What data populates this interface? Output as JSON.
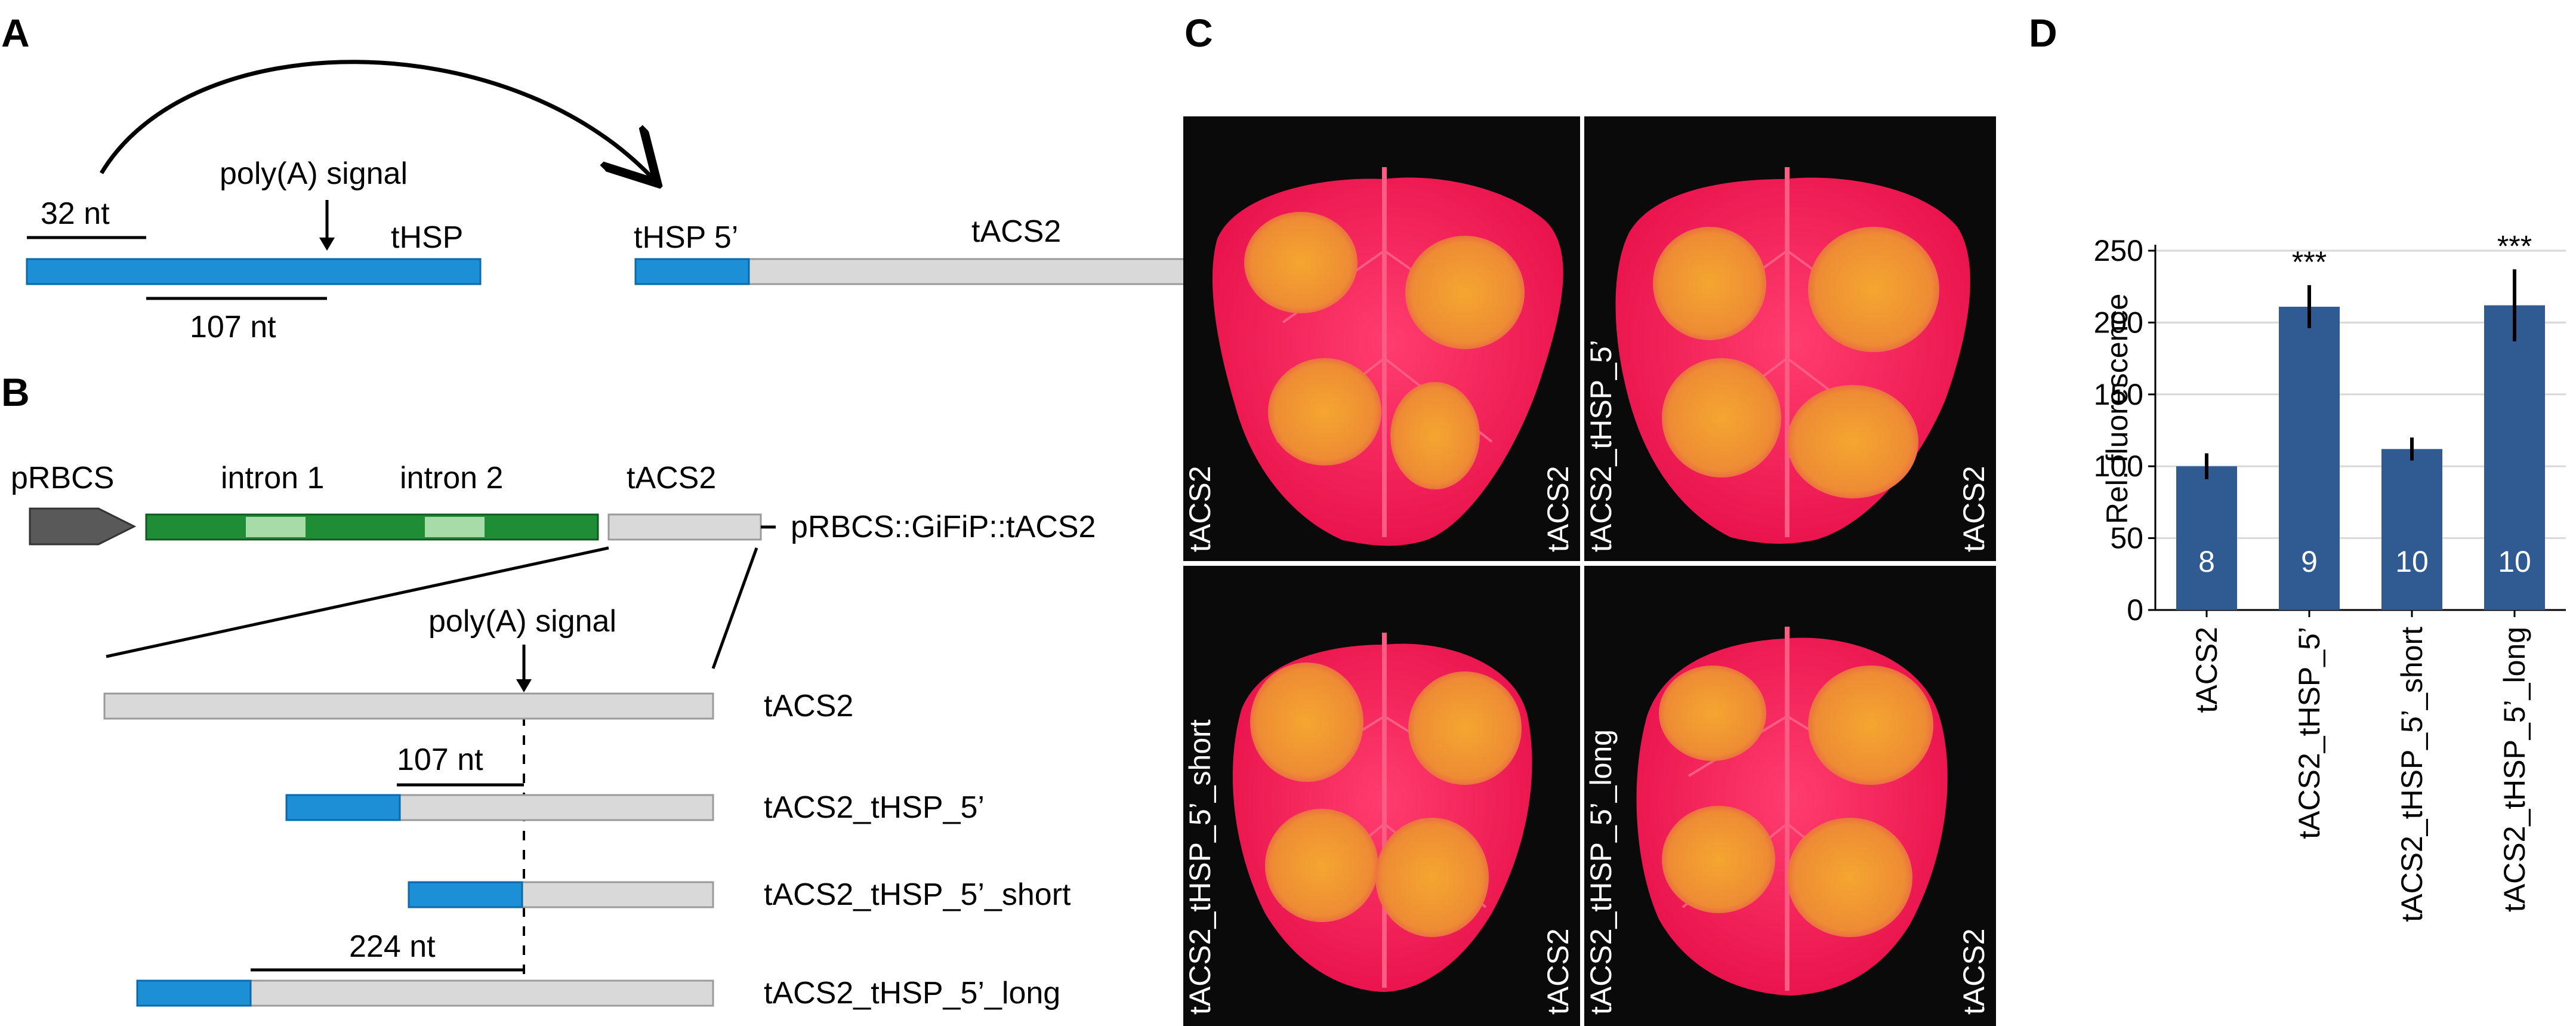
{
  "panels": {
    "a": {
      "letter": "A",
      "len32": "32 nt",
      "polya": "poly(A) signal",
      "thsp": "tHSP",
      "len107": "107 nt",
      "thsp5": "tHSP 5’",
      "tacs2": "tACS2"
    },
    "b": {
      "letter": "B",
      "prbcs": "pRBCS",
      "intron1": "intron 1",
      "intron2": "intron 2",
      "tacs2": "tACS2",
      "construct": "pRBCS::GiFiP::tACS2",
      "polya": "poly(A) signal",
      "len107": "107 nt",
      "len224": "224 nt",
      "rows": [
        "tACS2",
        "tACS2_tHSP_5’",
        "tACS2_tHSP_5’_short",
        "tACS2_tHSP_5’_long"
      ]
    },
    "c": {
      "letter": "C",
      "leaves": [
        {
          "left": "tACS2",
          "right": "tACS2"
        },
        {
          "left": "tACS2_tHSP_5’",
          "right": "tACS2"
        },
        {
          "left": "tACS2_tHSP_5’_short",
          "right": "tACS2"
        },
        {
          "left": "tACS2_tHSP_5’_long",
          "right": "tACS2"
        }
      ]
    },
    "d": {
      "letter": "D"
    }
  },
  "chart_data": {
    "type": "bar",
    "title": "",
    "xlabel": "",
    "ylabel": "Rel. fluorescence",
    "ylim": [
      0,
      250
    ],
    "yticks": [
      0,
      50,
      100,
      150,
      200,
      250
    ],
    "grid": true,
    "categories": [
      "tACS2",
      "tACS2_tHSP_5’",
      "tACS2_tHSP_5’_short",
      "tACS2_tHSP_5’_long"
    ],
    "values": [
      100,
      211,
      112,
      212
    ],
    "errors": [
      9,
      15,
      8,
      25
    ],
    "n_labels": [
      "8",
      "9",
      "10",
      "10"
    ],
    "significance": [
      "",
      "***",
      "",
      "***"
    ],
    "colors": {
      "bar": "#2f5a92",
      "error": "#000000",
      "label": "#ffffff",
      "grid": "#d9d9d9"
    }
  }
}
